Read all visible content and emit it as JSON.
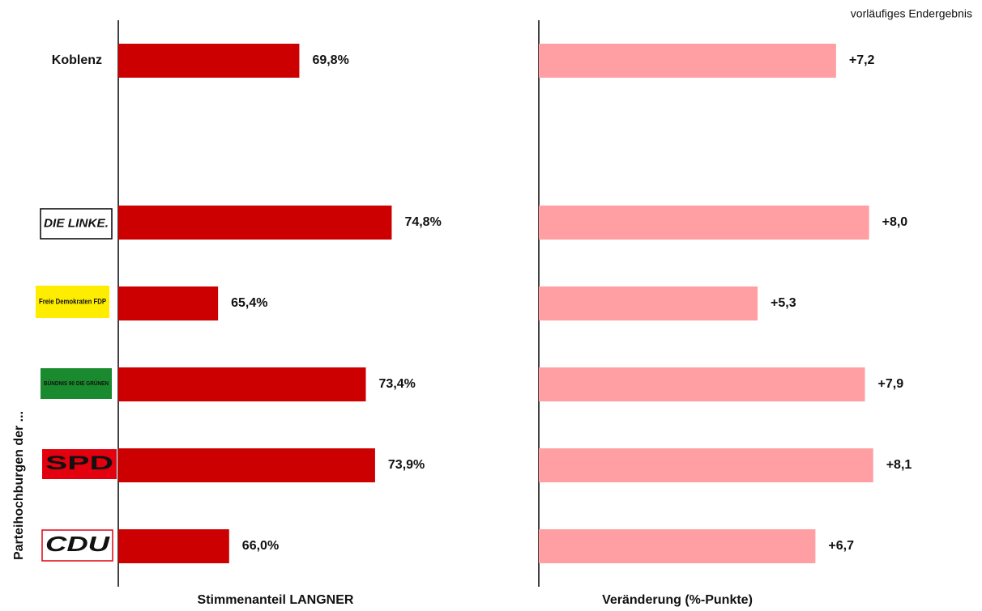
{
  "note_top": "vorläufiges Endergebnis",
  "y_label": "Parteihochburgen der ...",
  "chart_data": [
    {
      "type": "bar",
      "orientation": "horizontal",
      "xlabel": "Stimmenanteil LANGNER",
      "color": "#cc0000",
      "categories": [
        "Koblenz",
        null,
        "DIE LINKE.",
        "Freie Demokraten FDP",
        "BÜNDNIS 90 DIE GRÜNEN",
        "SPD",
        "CDU"
      ],
      "values": [
        69.8,
        null,
        74.8,
        65.4,
        73.4,
        73.9,
        66.0
      ],
      "value_labels": [
        "69,8%",
        null,
        "74,8%",
        "65,4%",
        "73,4%",
        "73,9%",
        "66,0%"
      ],
      "xlim": [
        60,
        80
      ]
    },
    {
      "type": "bar",
      "orientation": "horizontal",
      "xlabel": "Veränderung (%-Punkte)",
      "color": "#ff9ea3",
      "values": [
        7.2,
        null,
        8.0,
        5.3,
        7.9,
        8.1,
        6.7
      ],
      "value_labels": [
        "+7,2",
        null,
        "+8,0",
        "+5,3",
        "+7,9",
        "+8,1",
        "+6,7"
      ],
      "xlim": [
        0,
        10.5
      ]
    }
  ]
}
